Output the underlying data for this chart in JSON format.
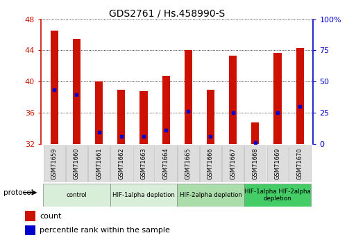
{
  "title": "GDS2761 / Hs.458990-S",
  "samples": [
    "GSM71659",
    "GSM71660",
    "GSM71661",
    "GSM71662",
    "GSM71663",
    "GSM71664",
    "GSM71665",
    "GSM71666",
    "GSM71667",
    "GSM71668",
    "GSM71669",
    "GSM71670"
  ],
  "counts": [
    46.5,
    45.5,
    40.0,
    39.0,
    38.8,
    40.7,
    44.0,
    39.0,
    43.3,
    34.8,
    43.7,
    44.3
  ],
  "percentile_ranks": [
    39.0,
    38.3,
    33.5,
    33.0,
    33.0,
    33.8,
    36.2,
    33.0,
    36.0,
    32.2,
    36.0,
    36.8
  ],
  "y_min": 32,
  "y_max": 48,
  "y_ticks": [
    32,
    36,
    40,
    44,
    48
  ],
  "right_y_ticks": [
    0,
    25,
    50,
    75,
    100
  ],
  "right_y_labels": [
    "0",
    "25",
    "50",
    "75",
    "100%"
  ],
  "bar_color": "#cc1100",
  "marker_color": "#0000cc",
  "groups": [
    {
      "label": "control",
      "start": 0,
      "end": 3,
      "color": "#d8eed8"
    },
    {
      "label": "HIF-1alpha depletion",
      "start": 3,
      "end": 6,
      "color": "#d8eed8"
    },
    {
      "label": "HIF-2alpha depletion",
      "start": 6,
      "end": 9,
      "color": "#aaddaa"
    },
    {
      "label": "HIF-1alpha HIF-2alpha\ndepletion",
      "start": 9,
      "end": 12,
      "color": "#44cc66"
    }
  ],
  "legend_count_label": "count",
  "legend_pct_label": "percentile rank within the sample",
  "protocol_label": "protocol"
}
